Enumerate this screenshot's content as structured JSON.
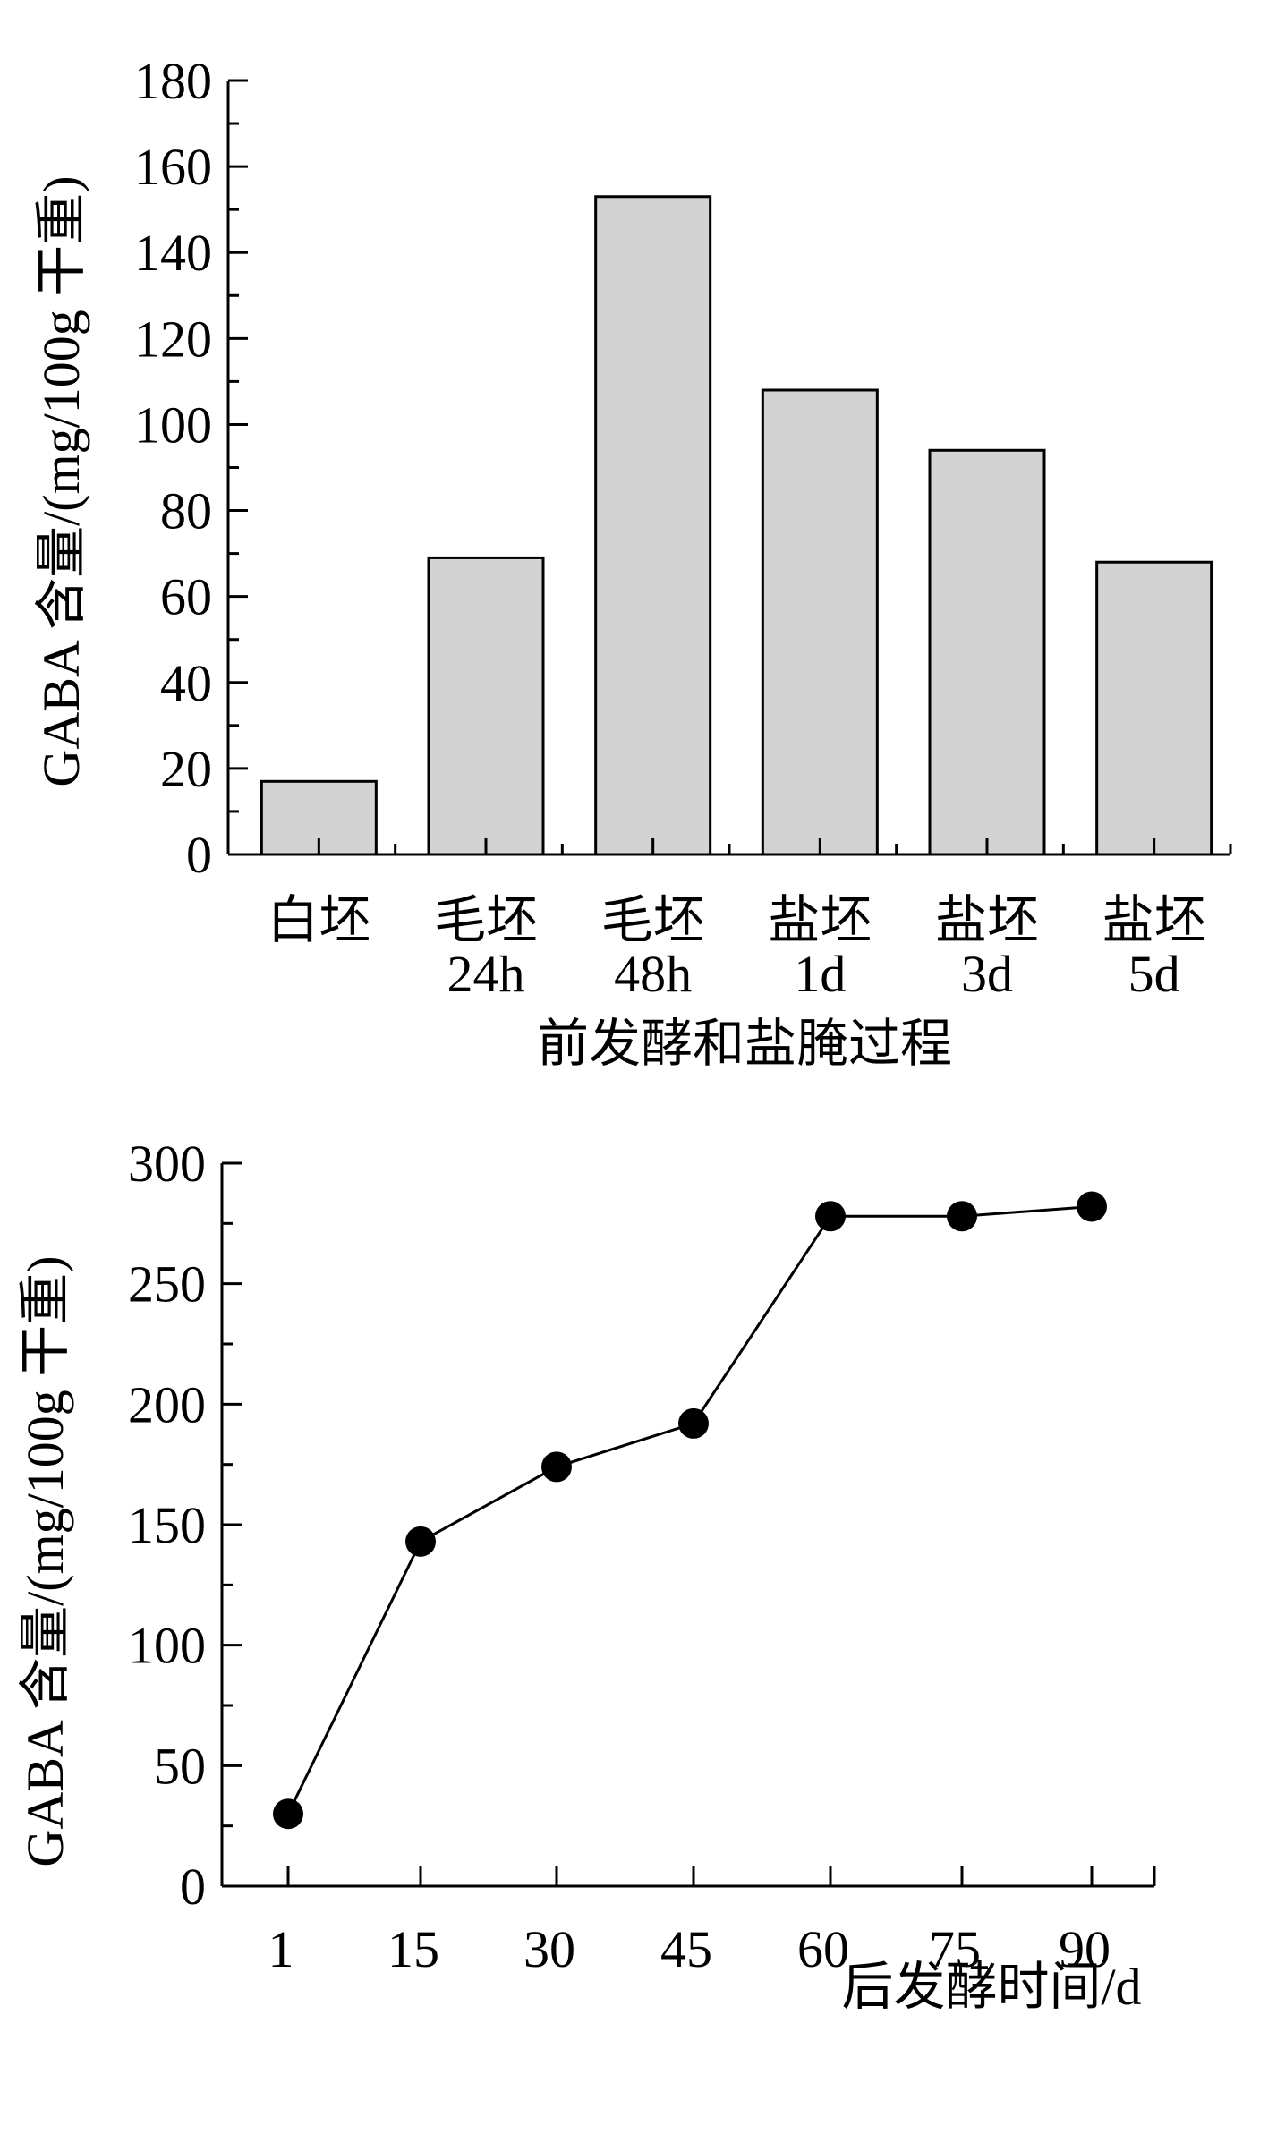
{
  "colors": {
    "bar_fill": "#d3d3d3",
    "ink": "#000000",
    "background": "#ffffff"
  },
  "chart_data": [
    {
      "type": "bar",
      "categories": [
        [
          "白坯"
        ],
        [
          "毛坯",
          "24h"
        ],
        [
          "毛坯",
          "48h"
        ],
        [
          "盐坯",
          "1d"
        ],
        [
          "盐坯",
          "3d"
        ],
        [
          "盐坯",
          "5d"
        ]
      ],
      "values": [
        17,
        69,
        153,
        108,
        94,
        68
      ],
      "xlabel": "前发酵和盐腌过程",
      "ylabel": "GABA 含量/(mg/100g 干重)",
      "ylim": [
        0,
        180
      ],
      "yticks": [
        "0",
        "20",
        "40",
        "60",
        "80",
        "100",
        "120",
        "140",
        "160",
        "180"
      ],
      "ytick_values": [
        0,
        20,
        40,
        60,
        80,
        100,
        120,
        140,
        160,
        180
      ],
      "grid": false
    },
    {
      "type": "line",
      "x": [
        1,
        15,
        30,
        45,
        60,
        75,
        90
      ],
      "y": [
        30,
        143,
        174,
        192,
        278,
        278,
        282
      ],
      "xticks": [
        "1",
        "15",
        "30",
        "45",
        "60",
        "75",
        "90"
      ],
      "xlabel": "后发酵时间/d",
      "ylabel": "GABA 含量/(mg/100g 干重)",
      "ylim": [
        0,
        300
      ],
      "yticks": [
        "0",
        "50",
        "100",
        "150",
        "200",
        "250",
        "300"
      ],
      "ytick_values": [
        0,
        50,
        100,
        150,
        200,
        250,
        300
      ],
      "grid": false,
      "marker": "filled-circle"
    }
  ]
}
